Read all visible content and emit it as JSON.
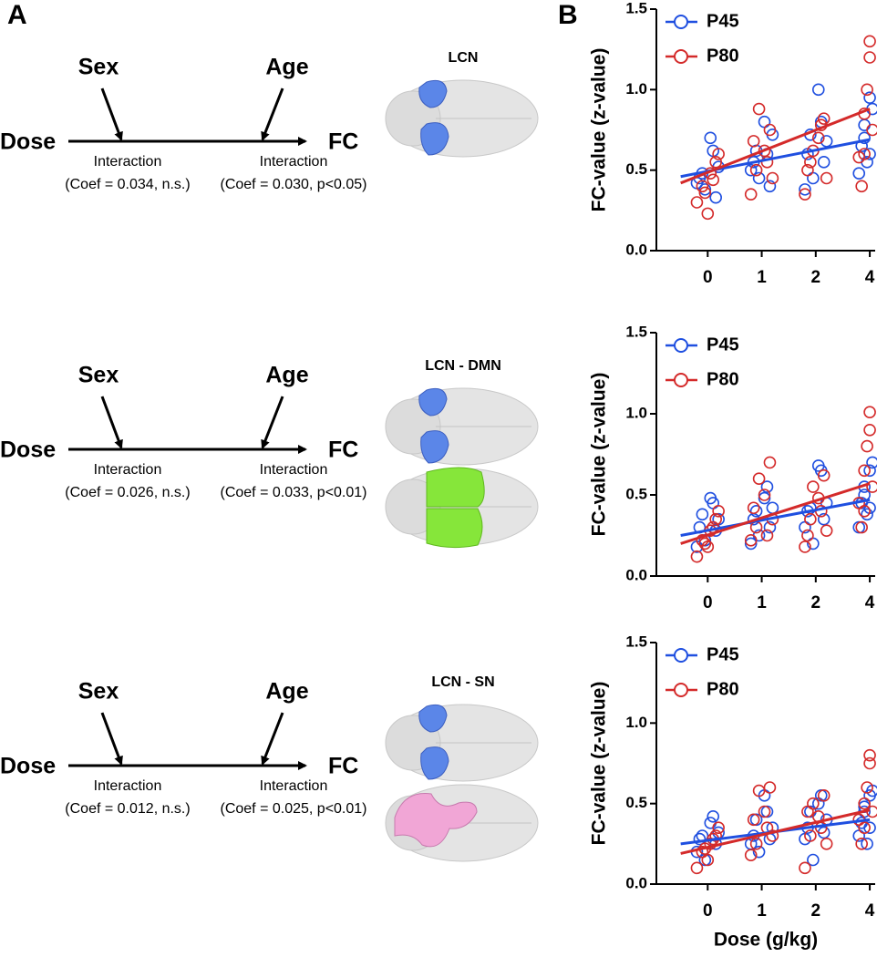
{
  "panels": {
    "left": "A",
    "right": "B"
  },
  "diagrams": [
    {
      "sex": "Sex",
      "age": "Age",
      "dose": "Dose",
      "fc": "FC",
      "interaction_left": "Interaction",
      "coef_left": "(Coef = 0.034, n.s.)",
      "interaction_right": "Interaction",
      "coef_right": "(Coef = 0.030, p<0.05)",
      "brain_label": "LCN"
    },
    {
      "sex": "Sex",
      "age": "Age",
      "dose": "Dose",
      "fc": "FC",
      "interaction_left": "Interaction",
      "coef_left": "(Coef = 0.026, n.s.)",
      "interaction_right": "Interaction",
      "coef_right": "(Coef = 0.033, p<0.01)",
      "brain_label": "LCN - DMN"
    },
    {
      "sex": "Sex",
      "age": "Age",
      "dose": "Dose",
      "fc": "FC",
      "interaction_left": "Interaction",
      "coef_left": "(Coef = 0.012, n.s.)",
      "interaction_right": "Interaction",
      "coef_right": "(Coef = 0.025, p<0.01)",
      "brain_label": "LCN - SN"
    }
  ],
  "chart_data": [
    {
      "type": "scatter",
      "ylabel": "FC-value (z-value)",
      "xlim": [
        -0.95,
        3.1
      ],
      "ylim": [
        0,
        1.5
      ],
      "xticks": [
        {
          "value": 0,
          "label": "0"
        },
        {
          "value": 1,
          "label": "1"
        },
        {
          "value": 2,
          "label": "2"
        },
        {
          "value": 3,
          "label": "4"
        }
      ],
      "yticks": [
        {
          "value": 0,
          "label": "0.0"
        },
        {
          "value": 0.5,
          "label": "0.5"
        },
        {
          "value": 1,
          "label": "1.0"
        },
        {
          "value": 1.5,
          "label": "1.5"
        }
      ],
      "fit_x": [
        -0.5,
        3
      ],
      "series": [
        {
          "name": "P45",
          "color": "#1f4fe0",
          "fit": [
            0.46,
            0.69
          ],
          "x": [
            -0.15,
            0.1,
            -0.05,
            0.2,
            -0.2,
            0.05,
            0.15,
            -0.1,
            0.85,
            1.1,
            0.95,
            1.2,
            0.8,
            1.05,
            1.15,
            0.9,
            1.85,
            2.1,
            1.95,
            2.2,
            1.8,
            2.05,
            2.15,
            1.9,
            2.85,
            3.0,
            2.95,
            2.9,
            2.8,
            3.05,
            3.0,
            2.9
          ],
          "values": [
            0.45,
            0.62,
            0.38,
            0.52,
            0.42,
            0.7,
            0.33,
            0.48,
            0.55,
            0.6,
            0.45,
            0.72,
            0.5,
            0.8,
            0.4,
            0.62,
            0.6,
            0.8,
            0.45,
            0.68,
            0.38,
            1.0,
            0.55,
            0.72,
            0.65,
            0.95,
            0.55,
            0.78,
            0.48,
            0.88,
            0.6,
            0.7
          ]
        },
        {
          "name": "P80",
          "color": "#d42a2a",
          "fit": [
            0.42,
            0.88
          ],
          "x": [
            -0.1,
            0.15,
            -0.2,
            0.05,
            0.0,
            0.2,
            -0.05,
            0.1,
            0.9,
            1.15,
            0.8,
            1.05,
            1.2,
            0.95,
            1.1,
            0.85,
            1.9,
            2.15,
            1.8,
            2.05,
            2.2,
            1.95,
            2.1,
            1.85,
            2.9,
            3.0,
            2.85,
            2.95,
            3.05,
            3.0,
            2.9,
            2.8
          ],
          "values": [
            0.4,
            0.55,
            0.3,
            0.48,
            0.23,
            0.6,
            0.36,
            0.44,
            0.5,
            0.75,
            0.35,
            0.62,
            0.45,
            0.88,
            0.55,
            0.68,
            0.55,
            0.82,
            0.35,
            0.7,
            0.45,
            0.62,
            0.78,
            0.5,
            0.6,
            1.3,
            0.4,
            1.0,
            0.75,
            1.2,
            0.85,
            0.58
          ]
        }
      ]
    },
    {
      "type": "scatter",
      "ylabel": "FC-value (z-value)",
      "xlim": [
        -0.95,
        3.1
      ],
      "ylim": [
        0,
        1.5
      ],
      "xticks": [
        {
          "value": 0,
          "label": "0"
        },
        {
          "value": 1,
          "label": "1"
        },
        {
          "value": 2,
          "label": "2"
        },
        {
          "value": 3,
          "label": "4"
        }
      ],
      "yticks": [
        {
          "value": 0,
          "label": "0.0"
        },
        {
          "value": 0.5,
          "label": "0.5"
        },
        {
          "value": 1,
          "label": "1.0"
        },
        {
          "value": 1.5,
          "label": "1.5"
        }
      ],
      "fit_x": [
        -0.5,
        3
      ],
      "series": [
        {
          "name": "P45",
          "color": "#1f4fe0",
          "fit": [
            0.25,
            0.47
          ],
          "x": [
            -0.15,
            0.1,
            -0.05,
            0.2,
            -0.2,
            0.05,
            0.15,
            -0.1,
            0.85,
            1.1,
            0.95,
            1.2,
            0.8,
            1.05,
            1.15,
            0.9,
            1.85,
            2.1,
            1.95,
            2.2,
            1.8,
            2.05,
            2.15,
            1.9,
            2.85,
            3.0,
            2.95,
            2.9,
            2.8,
            3.05,
            3.0,
            2.9
          ],
          "values": [
            0.3,
            0.45,
            0.22,
            0.35,
            0.18,
            0.48,
            0.28,
            0.38,
            0.35,
            0.55,
            0.25,
            0.42,
            0.2,
            0.48,
            0.3,
            0.4,
            0.4,
            0.65,
            0.2,
            0.45,
            0.3,
            0.68,
            0.35,
            0.42,
            0.45,
            0.65,
            0.38,
            0.55,
            0.3,
            0.7,
            0.42,
            0.5
          ]
        },
        {
          "name": "P80",
          "color": "#d42a2a",
          "fit": [
            0.2,
            0.57
          ],
          "x": [
            -0.1,
            0.15,
            -0.2,
            0.05,
            0.0,
            0.2,
            -0.05,
            0.1,
            0.9,
            1.15,
            0.8,
            1.05,
            1.2,
            0.95,
            1.1,
            0.85,
            1.9,
            2.15,
            1.8,
            2.05,
            2.2,
            1.95,
            2.1,
            1.85,
            2.9,
            3.0,
            2.85,
            2.95,
            3.05,
            3.0,
            2.9,
            2.8
          ],
          "values": [
            0.22,
            0.35,
            0.12,
            0.28,
            0.18,
            0.4,
            0.2,
            0.3,
            0.3,
            0.7,
            0.22,
            0.5,
            0.35,
            0.6,
            0.25,
            0.42,
            0.35,
            0.62,
            0.18,
            0.48,
            0.28,
            0.55,
            0.4,
            0.25,
            0.4,
            1.01,
            0.3,
            0.8,
            0.55,
            0.9,
            0.65,
            0.45
          ]
        }
      ]
    },
    {
      "type": "scatter",
      "ylabel": "FC-value (z-value)",
      "xlabel": "Dose (g/kg)",
      "xlim": [
        -0.95,
        3.1
      ],
      "ylim": [
        0,
        1.5
      ],
      "xticks": [
        {
          "value": 0,
          "label": "0"
        },
        {
          "value": 1,
          "label": "1"
        },
        {
          "value": 2,
          "label": "2"
        },
        {
          "value": 3,
          "label": "4"
        }
      ],
      "yticks": [
        {
          "value": 0,
          "label": "0.0"
        },
        {
          "value": 0.5,
          "label": "0.5"
        },
        {
          "value": 1,
          "label": "1.0"
        },
        {
          "value": 1.5,
          "label": "1.5"
        }
      ],
      "fit_x": [
        -0.5,
        3
      ],
      "series": [
        {
          "name": "P45",
          "color": "#1f4fe0",
          "fit": [
            0.25,
            0.4
          ],
          "x": [
            -0.15,
            0.1,
            -0.05,
            0.2,
            -0.2,
            0.05,
            0.15,
            -0.1,
            0.85,
            1.1,
            0.95,
            1.2,
            0.8,
            1.05,
            1.15,
            0.9,
            1.85,
            2.1,
            1.95,
            2.2,
            1.8,
            2.05,
            2.15,
            1.9,
            2.85,
            3.0,
            2.95,
            2.9,
            2.8,
            3.05,
            3.0,
            2.9
          ],
          "values": [
            0.28,
            0.42,
            0.15,
            0.32,
            0.2,
            0.38,
            0.25,
            0.3,
            0.3,
            0.45,
            0.2,
            0.35,
            0.25,
            0.55,
            0.28,
            0.4,
            0.35,
            0.55,
            0.15,
            0.4,
            0.28,
            0.5,
            0.32,
            0.45,
            0.38,
            0.55,
            0.25,
            0.45,
            0.3,
            0.58,
            0.35,
            0.48
          ]
        },
        {
          "name": "P80",
          "color": "#d42a2a",
          "fit": [
            0.19,
            0.46
          ],
          "x": [
            -0.1,
            0.15,
            -0.2,
            0.05,
            0.0,
            0.2,
            -0.05,
            0.1,
            0.9,
            1.15,
            0.8,
            1.05,
            1.2,
            0.95,
            1.1,
            0.85,
            1.9,
            2.15,
            1.8,
            2.05,
            2.2,
            1.95,
            2.1,
            1.85,
            2.9,
            3.0,
            2.85,
            2.95,
            3.05,
            3.0,
            2.9,
            2.8
          ],
          "values": [
            0.2,
            0.3,
            0.1,
            0.25,
            0.15,
            0.35,
            0.22,
            0.28,
            0.25,
            0.6,
            0.18,
            0.45,
            0.3,
            0.58,
            0.35,
            0.4,
            0.3,
            0.55,
            0.1,
            0.42,
            0.25,
            0.5,
            0.35,
            0.45,
            0.35,
            0.8,
            0.25,
            0.6,
            0.45,
            0.75,
            0.5,
            0.4
          ]
        }
      ]
    }
  ]
}
